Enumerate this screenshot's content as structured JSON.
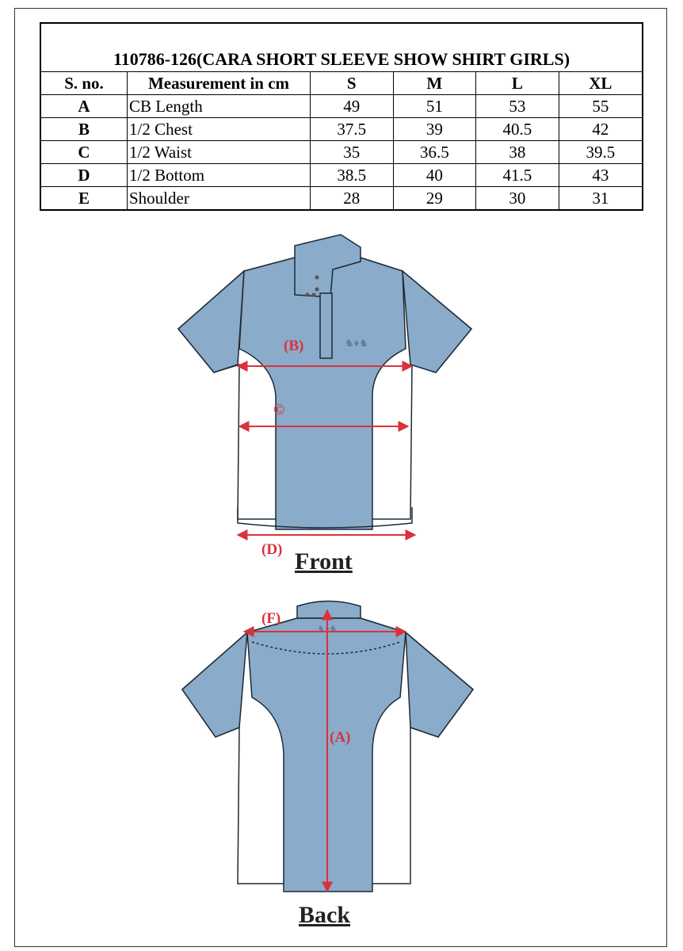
{
  "table": {
    "title": "110786-126(CARA SHORT SLEEVE SHOW SHIRT GIRLS)",
    "headers": [
      "S. no.",
      "Measurement in cm",
      "S",
      "M",
      "L",
      "XL"
    ],
    "rows": [
      {
        "code": "A",
        "measurement": "CB Length",
        "values": [
          "49",
          "51",
          "53",
          "55"
        ]
      },
      {
        "code": "B",
        "measurement": "1/2 Chest",
        "values": [
          "37.5",
          "39",
          "40.5",
          "42"
        ]
      },
      {
        "code": "C",
        "measurement": "1/2 Waist",
        "values": [
          "35",
          "36.5",
          "38",
          "39.5"
        ]
      },
      {
        "code": "D",
        "measurement": "1/2 Bottom",
        "values": [
          "38.5",
          "40",
          "41.5",
          "43"
        ]
      },
      {
        "code": "E",
        "measurement": "Shoulder",
        "values": [
          "28",
          "29",
          "30",
          "31"
        ]
      }
    ]
  },
  "front": {
    "label": "Front",
    "marker_b": "(B)",
    "marker_c": "©",
    "marker_d": "(D)"
  },
  "back": {
    "label": "Back",
    "marker_f": "(F)",
    "marker_a": "(A)"
  },
  "colors": {
    "shirt_blue": "#8aabc9",
    "arrow_red": "#d9323b",
    "outline": "#1e2a36"
  }
}
